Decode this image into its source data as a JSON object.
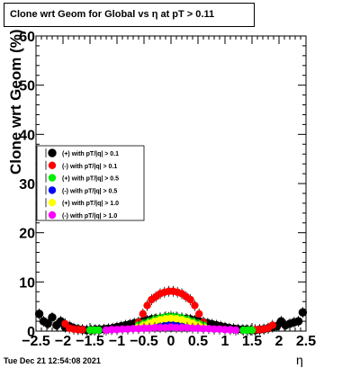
{
  "chart_data": {
    "type": "scatter",
    "title": "Clone wrt Geom for Global vs  η at pT > 0.11",
    "xlabel": "η",
    "ylabel": "Clone wrt Geom (%)",
    "xlim": [
      -2.5,
      2.5
    ],
    "ylim": [
      0,
      60
    ],
    "xticks": [
      "−2.5",
      "−2",
      "−1.5",
      "−1",
      "−0.5",
      "0",
      "0.5",
      "1",
      "1.5",
      "2",
      "2.5"
    ],
    "yticks": [
      "0",
      "10",
      "20",
      "30",
      "40",
      "50",
      "60"
    ],
    "grid": false,
    "legend_position": "center-left",
    "series": [
      {
        "name": "(+) with pT/|q| > 0.1",
        "color": "#000000",
        "x": [
          -2.44,
          -2.36,
          -2.28,
          -2.2,
          -2.12,
          -2.04,
          -1.96,
          -1.88,
          -1.8,
          -1.72,
          -1.64,
          -1.56,
          -1.48,
          -1.4,
          -1.32,
          -1.24,
          -1.16,
          -1.08,
          -1.0,
          -0.92,
          -0.84,
          -0.76,
          -0.68,
          -0.6,
          -0.52,
          -0.44,
          -0.36,
          -0.28,
          -0.2,
          -0.12,
          -0.04,
          0.04,
          0.12,
          0.2,
          0.28,
          0.36,
          0.44,
          0.52,
          0.6,
          0.68,
          0.76,
          0.84,
          0.92,
          1.0,
          1.08,
          1.16,
          1.24,
          1.32,
          1.4,
          1.48,
          1.56,
          1.64,
          1.72,
          1.8,
          1.88,
          1.96,
          2.04,
          2.12,
          2.2,
          2.28,
          2.36,
          2.44
        ],
        "y": [
          3.5,
          2.0,
          1.5,
          2.8,
          1.2,
          2.0,
          0.8,
          1.0,
          0.6,
          0.4,
          0.3,
          0.2,
          0.2,
          0.3,
          0.3,
          0.4,
          0.5,
          0.6,
          0.8,
          1.0,
          1.2,
          1.4,
          1.6,
          1.8,
          2.0,
          2.2,
          2.4,
          2.5,
          2.6,
          2.7,
          2.8,
          2.8,
          2.7,
          2.6,
          2.5,
          2.4,
          2.2,
          2.0,
          1.8,
          1.6,
          1.4,
          1.2,
          1.0,
          0.8,
          0.6,
          0.5,
          0.4,
          0.3,
          0.3,
          0.2,
          0.2,
          0.3,
          0.4,
          0.6,
          0.8,
          1.0,
          2.0,
          1.2,
          1.5,
          1.8,
          2.0,
          3.8
        ]
      },
      {
        "name": "(-) with pT/|q| > 0.1",
        "color": "#ff0000",
        "x": [
          -1.96,
          -1.88,
          -1.8,
          -1.72,
          -1.64,
          -0.6,
          -0.52,
          -0.44,
          -0.36,
          -0.28,
          -0.2,
          -0.12,
          -0.04,
          0.04,
          0.12,
          0.2,
          0.28,
          0.36,
          0.44,
          0.52,
          0.6,
          1.56,
          1.64,
          1.72,
          1.8,
          1.88
        ],
        "y": [
          1.5,
          0.6,
          0.4,
          0.3,
          0.3,
          1.8,
          3.5,
          5.2,
          6.4,
          7.0,
          7.6,
          7.9,
          8.1,
          8.1,
          7.9,
          7.6,
          7.0,
          6.4,
          5.2,
          3.5,
          1.8,
          0.3,
          0.3,
          0.4,
          0.6,
          1.2
        ]
      },
      {
        "name": "(+) with pT/|q| > 0.5",
        "color": "#00ee00",
        "x": [
          -1.5,
          -1.42,
          -1.34,
          -0.6,
          -0.5,
          -0.4,
          -0.3,
          -0.2,
          -0.1,
          0.0,
          0.1,
          0.2,
          0.3,
          0.4,
          0.5,
          0.6,
          1.34,
          1.42,
          1.5
        ],
        "y": [
          0.2,
          0.2,
          0.2,
          1.2,
          1.6,
          2.0,
          2.4,
          2.7,
          2.9,
          3.0,
          2.9,
          2.7,
          2.4,
          2.0,
          1.6,
          1.2,
          0.2,
          0.2,
          0.2
        ]
      },
      {
        "name": "(-) with pT/|q| > 0.5",
        "color": "#0000ff",
        "x": [
          -0.5,
          -0.4,
          -0.3,
          -0.2,
          -0.1,
          0.0,
          0.1,
          0.2,
          0.3,
          0.4,
          0.5
        ],
        "y": [
          0.8,
          1.0,
          1.2,
          1.4,
          1.5,
          1.5,
          1.5,
          1.4,
          1.2,
          1.0,
          0.8
        ]
      },
      {
        "name": "(+) with pT/|q| > 1.0",
        "color": "#ffff00",
        "x": [
          -0.6,
          -0.5,
          -0.4,
          -0.3,
          -0.2,
          -0.1,
          0.0,
          0.1,
          0.2,
          0.3,
          0.4,
          0.5,
          0.6
        ],
        "y": [
          0.8,
          1.2,
          1.6,
          2.0,
          2.3,
          2.5,
          2.6,
          2.5,
          2.3,
          2.0,
          1.6,
          1.2,
          0.8
        ]
      },
      {
        "name": "(-) with pT/|q| > 1.0",
        "color": "#ff00ff",
        "x": [
          -1.2,
          -1.1,
          -1.0,
          -0.9,
          -0.8,
          -0.7,
          -0.6,
          -0.5,
          -0.4,
          -0.3,
          -0.2,
          -0.1,
          0.0,
          0.1,
          0.2,
          0.3,
          0.4,
          0.5,
          0.6,
          0.7,
          0.8,
          0.9,
          1.0,
          1.1,
          1.2
        ],
        "y": [
          0.2,
          0.3,
          0.3,
          0.4,
          0.4,
          0.5,
          0.5,
          0.6,
          0.6,
          0.7,
          0.7,
          0.7,
          0.8,
          0.7,
          0.7,
          0.7,
          0.6,
          0.6,
          0.5,
          0.5,
          0.4,
          0.4,
          0.3,
          0.3,
          0.2
        ]
      }
    ]
  },
  "footer": "Tue Dec 21 12:54:08 2021"
}
